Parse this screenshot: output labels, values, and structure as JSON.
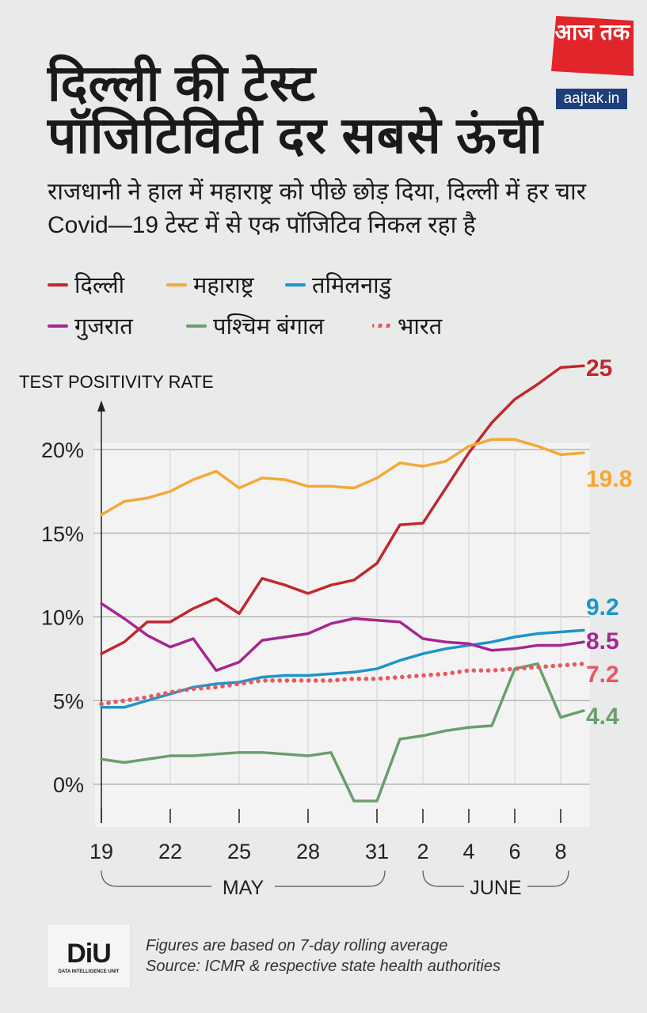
{
  "header": {
    "title_line1": "दिल्ली की टेस्ट",
    "title_line2": "पॉजिटिविटी दर सबसे ऊंची",
    "subtitle": "राजधानी ने हाल में महाराष्ट्र को पीछे छोड़ दिया, दिल्ली में हर चार Covid—19 टेस्ट में से एक पॉजिटिव निकल रहा है"
  },
  "logo": {
    "brand": "आज तक",
    "url": "aajtak.in",
    "color": "#e1252a"
  },
  "footer": {
    "logo_text": "DiU",
    "logo_subtext": "DATA INTELLIGENCE UNIT",
    "note": "Figures are based on 7-day rolling average",
    "source": "Source: ICMR & respective state health authorities"
  },
  "chart_data": {
    "type": "line",
    "ylabel": "TEST POSITIVITY RATE",
    "ylim": [
      -2,
      24
    ],
    "yticks": [
      0,
      5,
      10,
      15,
      20
    ],
    "ytick_labels": [
      "0%",
      "5%",
      "10%",
      "15%",
      "20%"
    ],
    "grid": "horizontal and vertical",
    "legend_position": "top",
    "x": [
      "19 May",
      "20 May",
      "21 May",
      "22 May",
      "23 May",
      "24 May",
      "25 May",
      "26 May",
      "27 May",
      "28 May",
      "29 May",
      "30 May",
      "31 May",
      "1 June",
      "2 June",
      "3 June",
      "4 June",
      "5 June",
      "6 June",
      "7 June",
      "8 June",
      "9 June"
    ],
    "xtick_labels": [
      {
        "label": "19",
        "day": 0
      },
      {
        "label": "22",
        "day": 3
      },
      {
        "label": "25",
        "day": 6
      },
      {
        "label": "28",
        "day": 9
      },
      {
        "label": "31",
        "day": 12
      },
      {
        "label": "2",
        "day": 14
      },
      {
        "label": "4",
        "day": 16
      },
      {
        "label": "6",
        "day": 18
      },
      {
        "label": "8",
        "day": 20
      }
    ],
    "month_groups": [
      {
        "label": "MAY",
        "from": 0,
        "to": 12
      },
      {
        "label": "JUNE",
        "from": 14,
        "to": 20
      }
    ],
    "series": [
      {
        "name": "दिल्ली",
        "color": "#c0282d",
        "style": "solid",
        "end_label": "25",
        "values": [
          7.8,
          8.5,
          9.7,
          9.7,
          10.5,
          11.1,
          10.2,
          12.3,
          11.9,
          11.4,
          11.9,
          12.2,
          13.2,
          15.5,
          15.6,
          17.7,
          19.8,
          21.6,
          23.0,
          23.9,
          24.9,
          25.0
        ]
      },
      {
        "name": "महाराष्ट्र",
        "color": "#f2a935",
        "style": "solid",
        "end_label": "19.8",
        "values": [
          16.1,
          16.9,
          17.1,
          17.5,
          18.2,
          18.7,
          17.7,
          18.3,
          18.2,
          17.8,
          17.8,
          17.7,
          18.3,
          19.2,
          19.0,
          19.3,
          20.2,
          20.6,
          20.6,
          20.2,
          19.7,
          19.8
        ]
      },
      {
        "name": "तमिलनाडु",
        "color": "#1c95c9",
        "style": "solid",
        "end_label": "9.2",
        "values": [
          4.6,
          4.6,
          5.0,
          5.4,
          5.8,
          6.0,
          6.1,
          6.4,
          6.5,
          6.5,
          6.6,
          6.7,
          6.9,
          7.4,
          7.8,
          8.1,
          8.3,
          8.5,
          8.8,
          9.0,
          9.1,
          9.2
        ]
      },
      {
        "name": "गुजरात",
        "color": "#a5278f",
        "style": "solid",
        "end_label": "8.5",
        "values": [
          10.8,
          9.9,
          8.9,
          8.2,
          8.7,
          6.8,
          7.3,
          8.6,
          8.8,
          9.0,
          9.6,
          9.9,
          9.8,
          9.7,
          8.7,
          8.5,
          8.4,
          8.0,
          8.1,
          8.3,
          8.3,
          8.5
        ]
      },
      {
        "name": "पश्चिम बंगाल",
        "color": "#6a9e6c",
        "style": "solid",
        "end_label": "4.4",
        "values": [
          1.5,
          1.3,
          1.5,
          1.7,
          1.7,
          1.8,
          1.9,
          1.9,
          1.8,
          1.7,
          1.9,
          -1.0,
          -1.0,
          2.7,
          2.9,
          3.2,
          3.4,
          3.5,
          6.9,
          7.2,
          4.0,
          4.4
        ]
      },
      {
        "name": "भारत",
        "color": "#e8585e",
        "style": "dotted",
        "end_label": "7.2",
        "values": [
          4.8,
          5.0,
          5.2,
          5.5,
          5.7,
          5.8,
          6.0,
          6.2,
          6.2,
          6.2,
          6.2,
          6.3,
          6.3,
          6.4,
          6.5,
          6.6,
          6.8,
          6.8,
          6.9,
          7.0,
          7.1,
          7.2
        ]
      }
    ]
  }
}
